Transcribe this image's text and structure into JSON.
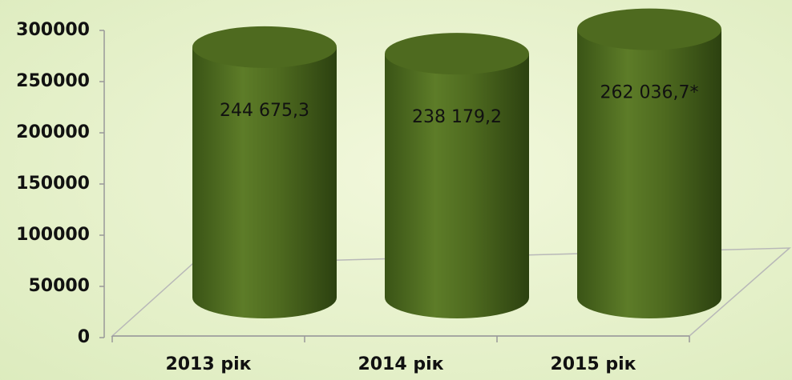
{
  "chart_data": {
    "type": "bar",
    "categories": [
      "2013 рік",
      "2014 рік",
      "2015 рік"
    ],
    "values": [
      244675.3,
      238179.2,
      262036.7
    ],
    "value_labels": [
      "244 675,3",
      "238 179,2",
      "262 036,7*"
    ],
    "color": "#4e6a1f",
    "ylim": [
      0,
      300000
    ],
    "yticks": [
      0,
      50000,
      100000,
      150000,
      200000,
      250000,
      300000
    ]
  }
}
